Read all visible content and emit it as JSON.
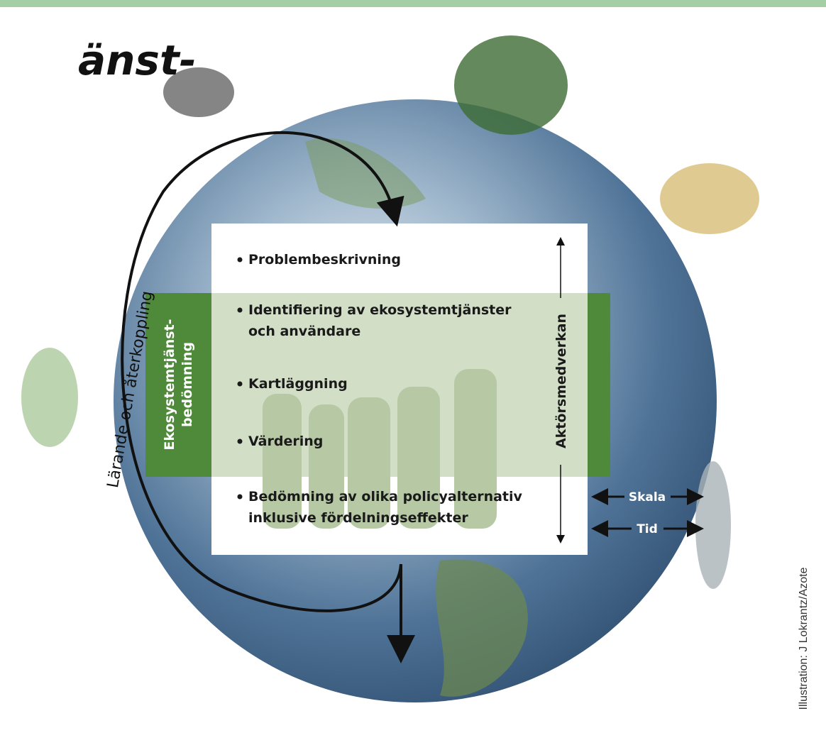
{
  "header": {
    "title_fragment": "änst-"
  },
  "diagram": {
    "loop_label": "Lärande och återkoppling",
    "assessment_label": [
      "Ekosystemtjänst-",
      "bedömning"
    ],
    "items": [
      [
        "Problembeskrivning"
      ],
      [
        "Identifiering av ekosystemtjänster",
        "och användare"
      ],
      [
        "Kartläggning"
      ],
      [
        "Värdering"
      ],
      [
        "Bedömning av olika policyalternativ",
        "inklusive fördelningseffekter"
      ]
    ],
    "stakeholder_label": "Aktörsmedverkan",
    "scale_label": "Skala",
    "time_label": "Tid"
  },
  "credit": "Illustration: J Lokrantz/Azote"
}
